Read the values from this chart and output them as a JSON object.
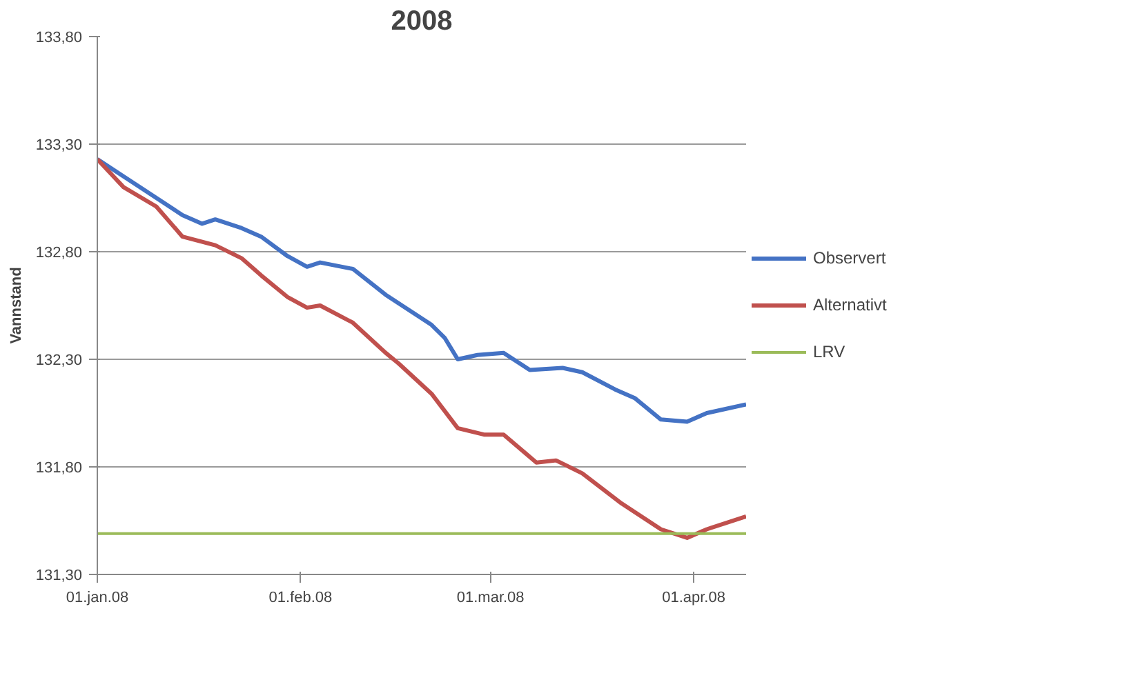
{
  "chart_data": {
    "type": "line",
    "title": "2008",
    "ylabel": "Vannstand",
    "xlim": [
      "2008-01-01",
      "2008-04-09"
    ],
    "xticks": [
      {
        "value": "2008-01-01",
        "label": "01.jan.08"
      },
      {
        "value": "2008-02-01",
        "label": "01.feb.08"
      },
      {
        "value": "2008-03-01",
        "label": "01.mar.08"
      },
      {
        "value": "2008-04-01",
        "label": "01.apr.08"
      }
    ],
    "ylim": [
      131.3,
      133.8
    ],
    "yticks": [
      {
        "value": 131.3,
        "label": "131,30"
      },
      {
        "value": 131.8,
        "label": "131,80"
      },
      {
        "value": 132.3,
        "label": "132,30"
      },
      {
        "value": 132.8,
        "label": "132,80"
      },
      {
        "value": 133.3,
        "label": "133,30"
      },
      {
        "value": 133.8,
        "label": "133,80"
      }
    ],
    "grid": "y",
    "legend": "right",
    "line_style": "solid",
    "series": [
      {
        "name": "Observert",
        "color": "#4472c4",
        "x": [
          "2008-01-01",
          "2008-01-06",
          "2008-01-14",
          "2008-01-17",
          "2008-01-19",
          "2008-01-23",
          "2008-01-26",
          "2008-01-30",
          "2008-02-02",
          "2008-02-04",
          "2008-02-09",
          "2008-02-14",
          "2008-02-21",
          "2008-02-23",
          "2008-02-25",
          "2008-02-28",
          "2008-03-03",
          "2008-03-07",
          "2008-03-12",
          "2008-03-15",
          "2008-03-20",
          "2008-03-23",
          "2008-03-27",
          "2008-03-31",
          "2008-04-03",
          "2008-04-09"
        ],
        "values": [
          133.23,
          133.13,
          132.97,
          132.93,
          132.95,
          132.91,
          132.87,
          132.78,
          132.73,
          132.75,
          132.72,
          132.6,
          132.46,
          132.4,
          132.3,
          132.32,
          132.33,
          132.25,
          132.26,
          132.24,
          132.16,
          132.12,
          132.02,
          132.01,
          132.05,
          132.09
        ]
      },
      {
        "name": "Alternativt",
        "color": "#c0504d",
        "x": [
          "2008-01-01",
          "2008-01-05",
          "2008-01-10",
          "2008-01-14",
          "2008-01-19",
          "2008-01-23",
          "2008-01-26",
          "2008-01-30",
          "2008-02-02",
          "2008-02-04",
          "2008-02-09",
          "2008-02-14",
          "2008-02-16",
          "2008-02-21",
          "2008-02-25",
          "2008-02-29",
          "2008-03-03",
          "2008-03-08",
          "2008-03-11",
          "2008-03-15",
          "2008-03-21",
          "2008-03-27",
          "2008-03-31",
          "2008-04-03",
          "2008-04-09"
        ],
        "values": [
          133.23,
          133.1,
          133.01,
          132.87,
          132.83,
          132.77,
          132.69,
          132.59,
          132.54,
          132.55,
          132.47,
          132.33,
          132.28,
          132.14,
          131.98,
          131.95,
          131.95,
          131.82,
          131.83,
          131.77,
          131.63,
          131.51,
          131.47,
          131.51,
          131.57
        ]
      },
      {
        "name": "LRV",
        "color": "#9bbb59",
        "x": [
          "2008-01-01",
          "2008-04-09"
        ],
        "values": [
          131.49,
          131.49
        ]
      }
    ]
  }
}
